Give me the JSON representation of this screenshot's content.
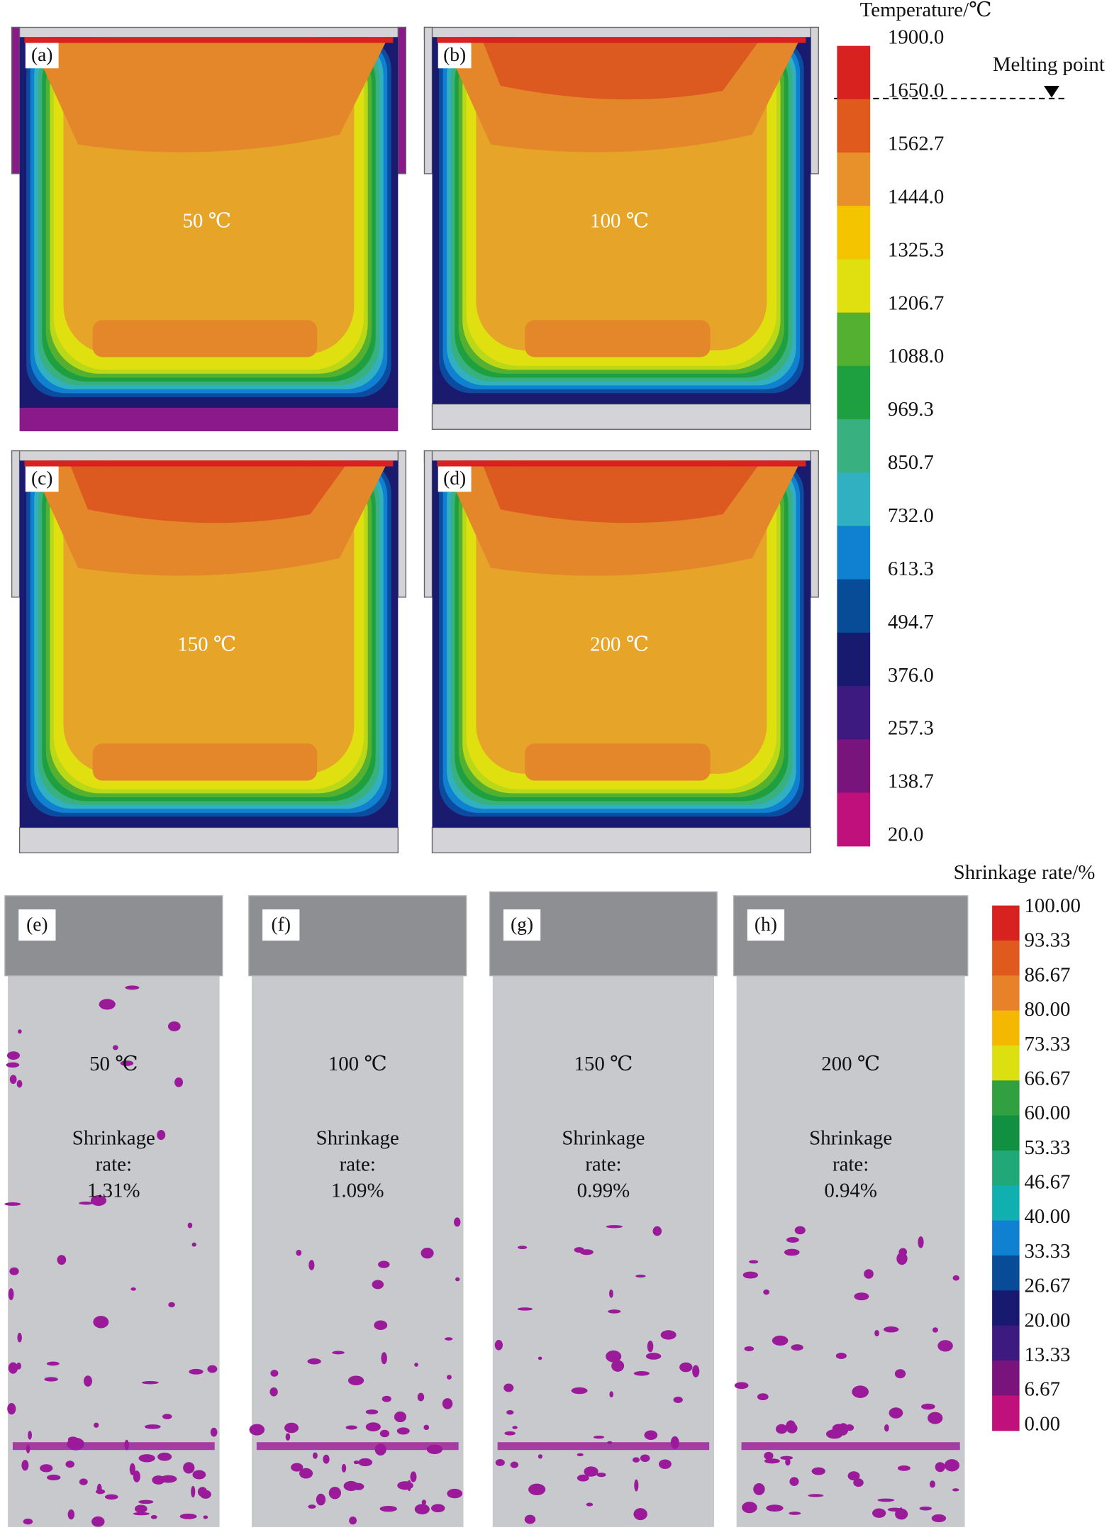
{
  "temperature_legend": {
    "title": "Temperature/℃",
    "labels": [
      "1900.0",
      "1650.0",
      "1562.7",
      "1444.0",
      "1325.3",
      "1206.7",
      "1088.0",
      "969.3",
      "850.7",
      "732.0",
      "613.3",
      "494.7",
      "376.0",
      "257.3",
      "138.7",
      "20.0"
    ],
    "melting_point": "Melting point"
  },
  "temperature_panels": [
    {
      "label": "(a)",
      "temperature": "50 ℃"
    },
    {
      "label": "(b)",
      "temperature": "100 ℃"
    },
    {
      "label": "(c)",
      "temperature": "150 ℃"
    },
    {
      "label": "(d)",
      "temperature": "200 ℃"
    }
  ],
  "shrinkage_legend": {
    "title": "Shrinkage rate/%",
    "labels": [
      "100.00",
      "93.33",
      "86.67",
      "80.00",
      "73.33",
      "66.67",
      "60.00",
      "53.33",
      "46.67",
      "40.00",
      "33.33",
      "26.67",
      "20.00",
      "13.33",
      "6.67",
      "0.00"
    ]
  },
  "shrinkage_panels": [
    {
      "label": "(e)",
      "temperature": "50 ℃",
      "caption": [
        "Shrinkage",
        "rate:",
        "1.31%"
      ]
    },
    {
      "label": "(f)",
      "temperature": "100 ℃",
      "caption": [
        "Shrinkage",
        "rate:",
        "1.09%"
      ]
    },
    {
      "label": "(g)",
      "temperature": "150 ℃",
      "caption": [
        "Shrinkage",
        "rate:",
        "0.99%"
      ]
    },
    {
      "label": "(h)",
      "temperature": "200 ℃",
      "caption": [
        "Shrinkage",
        "rate:",
        "0.94%"
      ]
    }
  ]
}
